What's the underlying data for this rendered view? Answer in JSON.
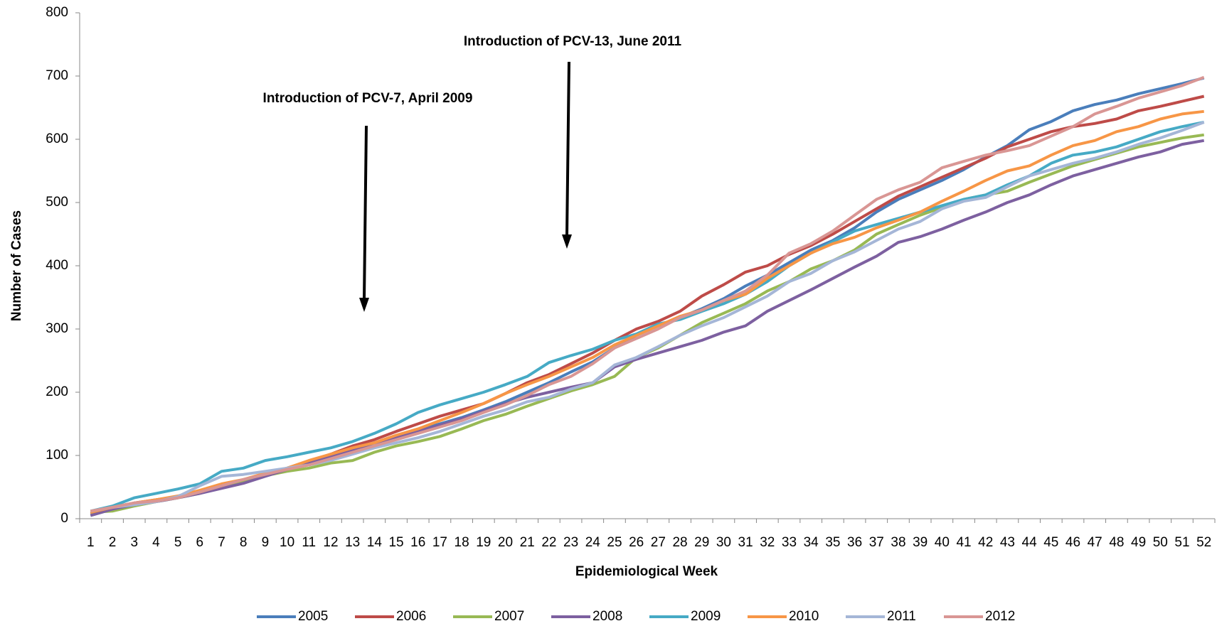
{
  "chart_data": {
    "type": "line",
    "annotations": [
      "Introduction of PCV-13, June 2011",
      "Introduction of PCV-7, April 2009"
    ],
    "xlabel": "Epidemiological Week",
    "ylabel": "Number of Cases",
    "categories": [
      1,
      2,
      3,
      4,
      5,
      6,
      7,
      8,
      9,
      10,
      11,
      12,
      13,
      14,
      15,
      16,
      17,
      18,
      19,
      20,
      21,
      22,
      23,
      24,
      25,
      26,
      27,
      28,
      29,
      30,
      31,
      32,
      33,
      34,
      35,
      36,
      37,
      38,
      39,
      40,
      41,
      42,
      43,
      44,
      45,
      46,
      47,
      48,
      49,
      50,
      51,
      52
    ],
    "ylim": [
      0,
      800
    ],
    "yticks": [
      0,
      100,
      200,
      300,
      400,
      500,
      600,
      700,
      800
    ],
    "grid": false,
    "legend": "bottom",
    "series": [
      {
        "name": "2005",
        "color": "#4a7ebb",
        "values": [
          5,
          15,
          22,
          28,
          35,
          43,
          50,
          60,
          70,
          80,
          90,
          100,
          110,
          120,
          130,
          140,
          150,
          160,
          172,
          185,
          200,
          215,
          232,
          248,
          270,
          290,
          305,
          318,
          332,
          348,
          368,
          385,
          405,
          425,
          440,
          460,
          485,
          505,
          520,
          535,
          552,
          572,
          590,
          615,
          628,
          645,
          655,
          662,
          672,
          680,
          688,
          697
        ]
      },
      {
        "name": "2006",
        "color": "#be4b48",
        "values": [
          8,
          18,
          25,
          30,
          35,
          42,
          52,
          58,
          68,
          78,
          90,
          102,
          115,
          125,
          138,
          150,
          162,
          172,
          182,
          198,
          215,
          228,
          245,
          262,
          282,
          300,
          312,
          328,
          352,
          370,
          390,
          400,
          418,
          432,
          450,
          470,
          490,
          510,
          525,
          540,
          555,
          570,
          588,
          600,
          612,
          620,
          625,
          632,
          645,
          652,
          660,
          668
        ]
      },
      {
        "name": "2007",
        "color": "#98b954",
        "values": [
          10,
          12,
          20,
          27,
          33,
          40,
          50,
          58,
          68,
          75,
          80,
          88,
          92,
          105,
          115,
          122,
          130,
          142,
          155,
          165,
          178,
          190,
          202,
          212,
          225,
          255,
          270,
          290,
          310,
          325,
          340,
          360,
          375,
          395,
          408,
          425,
          450,
          465,
          480,
          492,
          505,
          512,
          518,
          532,
          545,
          558,
          568,
          578,
          588,
          595,
          602,
          607
        ]
      },
      {
        "name": "2008",
        "color": "#7d60a0",
        "values": [
          5,
          15,
          22,
          27,
          33,
          40,
          48,
          56,
          67,
          78,
          88,
          98,
          108,
          115,
          128,
          138,
          148,
          158,
          170,
          182,
          192,
          200,
          208,
          215,
          240,
          252,
          262,
          272,
          282,
          295,
          305,
          328,
          345,
          362,
          380,
          398,
          415,
          437,
          446,
          458,
          472,
          485,
          500,
          512,
          528,
          542,
          552,
          562,
          572,
          580,
          592,
          598
        ]
      },
      {
        "name": "2009",
        "color": "#46aac5",
        "values": [
          12,
          20,
          33,
          40,
          47,
          55,
          75,
          80,
          92,
          98,
          105,
          112,
          122,
          135,
          150,
          168,
          180,
          190,
          200,
          212,
          225,
          247,
          258,
          268,
          282,
          292,
          308,
          315,
          328,
          340,
          355,
          375,
          400,
          420,
          438,
          455,
          465,
          475,
          485,
          495,
          505,
          512,
          528,
          542,
          562,
          575,
          580,
          588,
          600,
          612,
          620,
          627
        ]
      },
      {
        "name": "2010",
        "color": "#f79646",
        "values": [
          10,
          18,
          25,
          30,
          36,
          45,
          55,
          62,
          72,
          80,
          92,
          102,
          112,
          120,
          132,
          142,
          155,
          168,
          182,
          198,
          212,
          225,
          240,
          255,
          275,
          290,
          305,
          320,
          330,
          345,
          355,
          380,
          400,
          420,
          435,
          445,
          460,
          472,
          485,
          502,
          518,
          535,
          550,
          558,
          575,
          590,
          598,
          612,
          620,
          632,
          640,
          644
        ]
      },
      {
        "name": "2011",
        "color": "#a5b6d7",
        "values": [
          12,
          18,
          22,
          27,
          35,
          52,
          67,
          70,
          75,
          80,
          85,
          92,
          102,
          112,
          120,
          128,
          138,
          150,
          162,
          172,
          185,
          192,
          205,
          215,
          243,
          255,
          272,
          290,
          305,
          318,
          335,
          352,
          375,
          388,
          408,
          422,
          440,
          458,
          470,
          490,
          502,
          508,
          525,
          542,
          552,
          562,
          570,
          580,
          592,
          602,
          614,
          627
        ]
      },
      {
        "name": "2012",
        "color": "#d99694",
        "values": [
          12,
          18,
          25,
          28,
          33,
          42,
          52,
          62,
          70,
          78,
          85,
          95,
          105,
          115,
          125,
          135,
          145,
          155,
          168,
          180,
          195,
          212,
          225,
          245,
          270,
          285,
          300,
          318,
          330,
          345,
          360,
          385,
          420,
          435,
          455,
          480,
          505,
          520,
          532,
          555,
          565,
          575,
          582,
          590,
          605,
          620,
          640,
          652,
          665,
          675,
          685,
          698
        ]
      }
    ]
  }
}
